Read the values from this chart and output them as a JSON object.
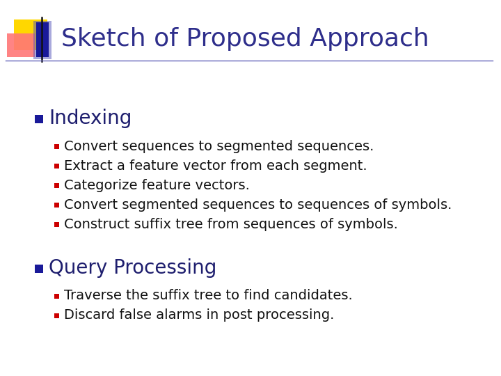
{
  "title": "Sketch of Proposed Approach",
  "title_color": "#2E2E8B",
  "title_fontsize": 26,
  "background_color": "#FFFFFF",
  "section1_header": "Indexing",
  "section1_bullets": [
    "Convert sequences to segmented sequences.",
    "Extract a feature vector from each segment.",
    "Categorize feature vectors.",
    "Convert segmented sequences to sequences of symbols.",
    "Construct suffix tree from sequences of symbols."
  ],
  "section2_header": "Query Processing",
  "section2_bullets": [
    "Traverse the suffix tree to find candidates.",
    "Discard false alarms in post processing."
  ],
  "header_fontsize": 20,
  "bullet_fontsize": 14,
  "header_color": "#1E1E6E",
  "sub_bullet_color": "#CC0000",
  "text_color": "#111111",
  "line_color": "#6666BB",
  "logo_yellow": "#FFD700",
  "logo_red": "#FF7777",
  "logo_blue": "#1A1A99",
  "logo_blue_blur": "#5555BB"
}
